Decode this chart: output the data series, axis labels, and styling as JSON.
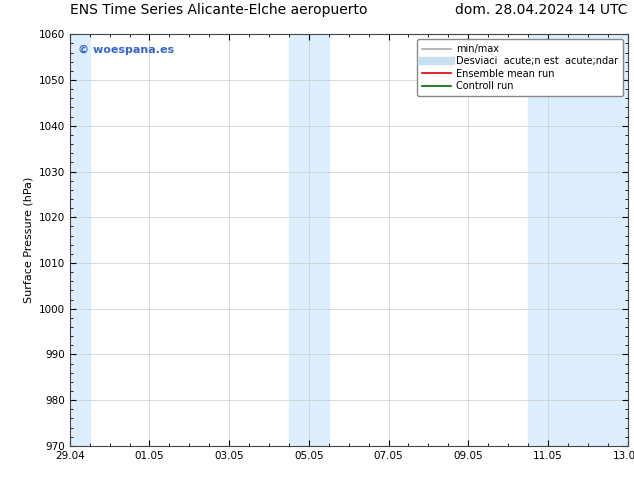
{
  "title_left": "ENS Time Series Alicante-Elche aeropuerto",
  "title_right": "dom. 28.04.2024 14 UTC",
  "ylabel": "Surface Pressure (hPa)",
  "ylim": [
    970,
    1060
  ],
  "yticks": [
    970,
    980,
    990,
    1000,
    1010,
    1020,
    1030,
    1040,
    1050,
    1060
  ],
  "xlim_start": 0,
  "xlim_end": 14,
  "xtick_labels": [
    "29.04",
    "01.05",
    "03.05",
    "05.05",
    "07.05",
    "09.05",
    "11.05",
    "13.05"
  ],
  "xtick_positions": [
    0,
    2,
    4,
    6,
    8,
    10,
    12,
    14
  ],
  "shaded_bands": [
    {
      "xstart": 0.0,
      "xend": 0.5,
      "color": "#ddeeff"
    },
    {
      "xstart": 5.5,
      "xend": 6.5,
      "color": "#ddeeff"
    },
    {
      "xstart": 11.5,
      "xend": 14.0,
      "color": "#ddeeff"
    }
  ],
  "bg_color": "#ffffff",
  "plot_bg_color": "#ffffff",
  "grid_color": "#cccccc",
  "watermark_text": "© woespana.es",
  "watermark_color": "#3366cc",
  "legend_items": [
    {
      "label": "min/max",
      "color": "#aaaaaa",
      "lw": 1.2,
      "style": "solid"
    },
    {
      "label": "Desviaci  acute;n est  acute;ndar",
      "color": "#c8dff0",
      "lw": 6,
      "style": "solid"
    },
    {
      "label": "Ensemble mean run",
      "color": "#dd0000",
      "lw": 1.2,
      "style": "solid"
    },
    {
      "label": "Controll run",
      "color": "#006600",
      "lw": 1.2,
      "style": "solid"
    }
  ],
  "title_fontsize": 10,
  "axis_label_fontsize": 8,
  "tick_fontsize": 7.5,
  "watermark_fontsize": 8,
  "legend_fontsize": 7
}
